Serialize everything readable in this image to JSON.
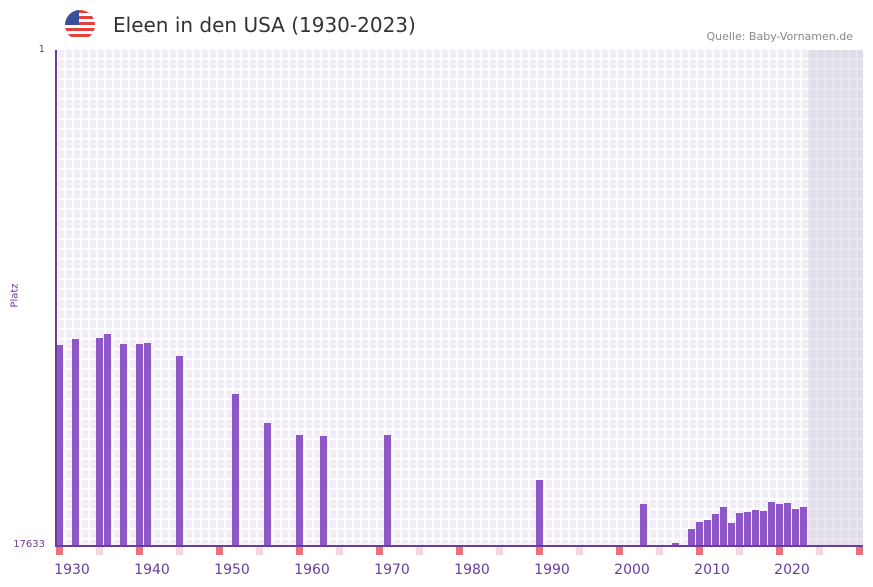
{
  "header": {
    "title": "Eleen in den USA (1930-2023)",
    "source": "Quelle: Baby-Vornamen.de",
    "flag_icon": "us-flag-icon"
  },
  "colors": {
    "bar": "#8e56c6",
    "axis": "#6a3d9a",
    "decade_mark": "#e8737a",
    "half_decade_mark": "#f5d6de"
  },
  "chart_data": {
    "type": "bar",
    "title": "Eleen in den USA (1930-2023)",
    "xlabel": "",
    "ylabel": "Platz",
    "ylim": [
      17633,
      1
    ],
    "y_ticks": [
      "1",
      "17633"
    ],
    "x_range": [
      1930,
      2030
    ],
    "x_ticks": [
      "1930",
      "1940",
      "1950",
      "1960",
      "1970",
      "1980",
      "1990",
      "2000",
      "2010",
      "2020"
    ],
    "points": [
      {
        "year": 1930,
        "rank": 10509
      },
      {
        "year": 1932,
        "rank": 10294
      },
      {
        "year": 1935,
        "rank": 10259
      },
      {
        "year": 1936,
        "rank": 10117
      },
      {
        "year": 1938,
        "rank": 10473
      },
      {
        "year": 1940,
        "rank": 10473
      },
      {
        "year": 1941,
        "rank": 10437
      },
      {
        "year": 1945,
        "rank": 10900
      },
      {
        "year": 1952,
        "rank": 12254
      },
      {
        "year": 1956,
        "rank": 13287
      },
      {
        "year": 1960,
        "rank": 13714
      },
      {
        "year": 1963,
        "rank": 13750
      },
      {
        "year": 1971,
        "rank": 13714
      },
      {
        "year": 1990,
        "rank": 15318
      },
      {
        "year": 2003,
        "rank": 16172
      },
      {
        "year": 2007,
        "rank": 17561
      },
      {
        "year": 2009,
        "rank": 17062
      },
      {
        "year": 2010,
        "rank": 16813
      },
      {
        "year": 2011,
        "rank": 16742
      },
      {
        "year": 2012,
        "rank": 16528
      },
      {
        "year": 2013,
        "rank": 16279
      },
      {
        "year": 2014,
        "rank": 16849
      },
      {
        "year": 2015,
        "rank": 16493
      },
      {
        "year": 2016,
        "rank": 16457
      },
      {
        "year": 2017,
        "rank": 16386
      },
      {
        "year": 2018,
        "rank": 16422
      },
      {
        "year": 2019,
        "rank": 16101
      },
      {
        "year": 2020,
        "rank": 16172
      },
      {
        "year": 2021,
        "rank": 16137
      },
      {
        "year": 2022,
        "rank": 16351
      },
      {
        "year": 2023,
        "rank": 16279
      }
    ],
    "grid": true,
    "legend": "none"
  }
}
